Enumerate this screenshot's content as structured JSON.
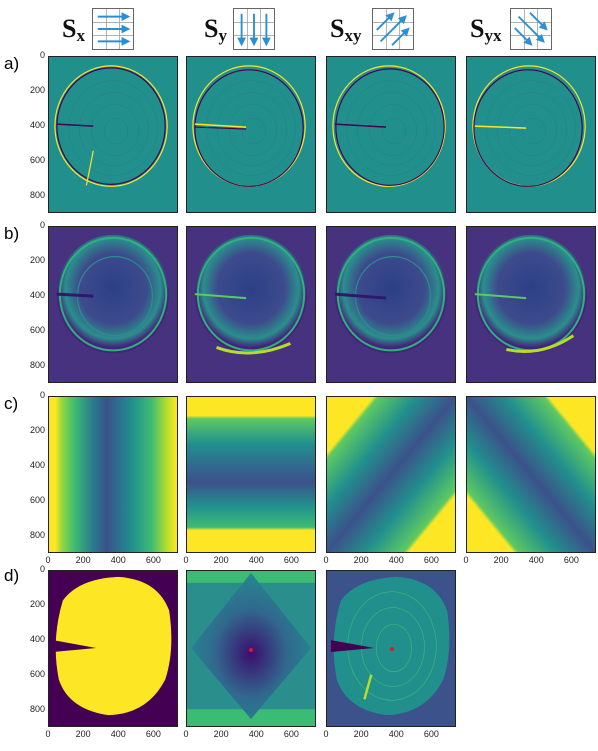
{
  "columns": [
    {
      "base": "S",
      "sub": "x"
    },
    {
      "base": "S",
      "sub": "y"
    },
    {
      "base": "S",
      "sub": "xy"
    },
    {
      "base": "S",
      "sub": "yx"
    }
  ],
  "rows": [
    "a)",
    "b)",
    "c)",
    "d)"
  ],
  "y_ticks": [
    "0",
    "200",
    "400",
    "600",
    "800"
  ],
  "x_ticks": [
    "0",
    "200",
    "400",
    "600"
  ],
  "icons": [
    "arrows-horizontal-icon",
    "arrows-vertical-icon",
    "arrows-diagonal-up-icon",
    "arrows-diagonal-down-icon"
  ],
  "colors": {
    "viridis_dark": "#440154",
    "viridis_mid": "#21908d",
    "viridis_light": "#fde725",
    "center_marker": "#e8132a"
  }
}
